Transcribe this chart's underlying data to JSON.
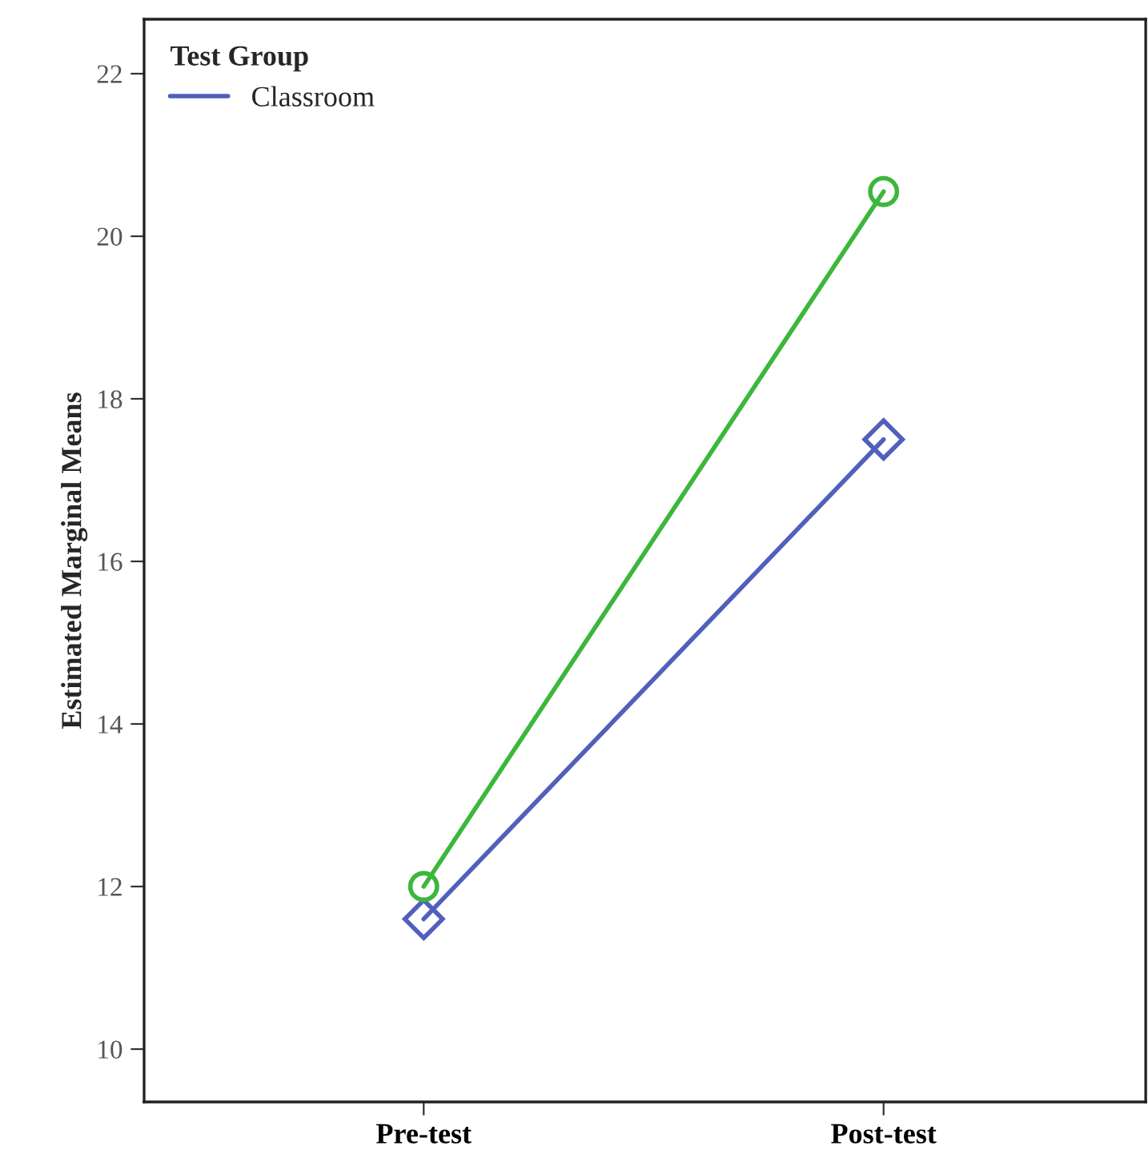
{
  "chart_data": {
    "type": "line",
    "ylabel": "Estimated Marginal Means",
    "legend_title": "Test Group",
    "categories": [
      "Pre-test",
      "Post-test"
    ],
    "series": [
      {
        "name": "Classroom",
        "color": "#5060bc",
        "values": [
          11.6,
          17.5
        ],
        "marker": "diamond"
      },
      {
        "color": "#3cb73c",
        "values": [
          12.0,
          20.55
        ],
        "marker": "circle"
      }
    ],
    "ylim": [
      9.35,
      22.67
    ],
    "yticks": [
      10,
      12,
      14,
      16,
      18,
      20,
      22
    ],
    "grid": false,
    "legend": "top left",
    "line_style": "solid"
  }
}
